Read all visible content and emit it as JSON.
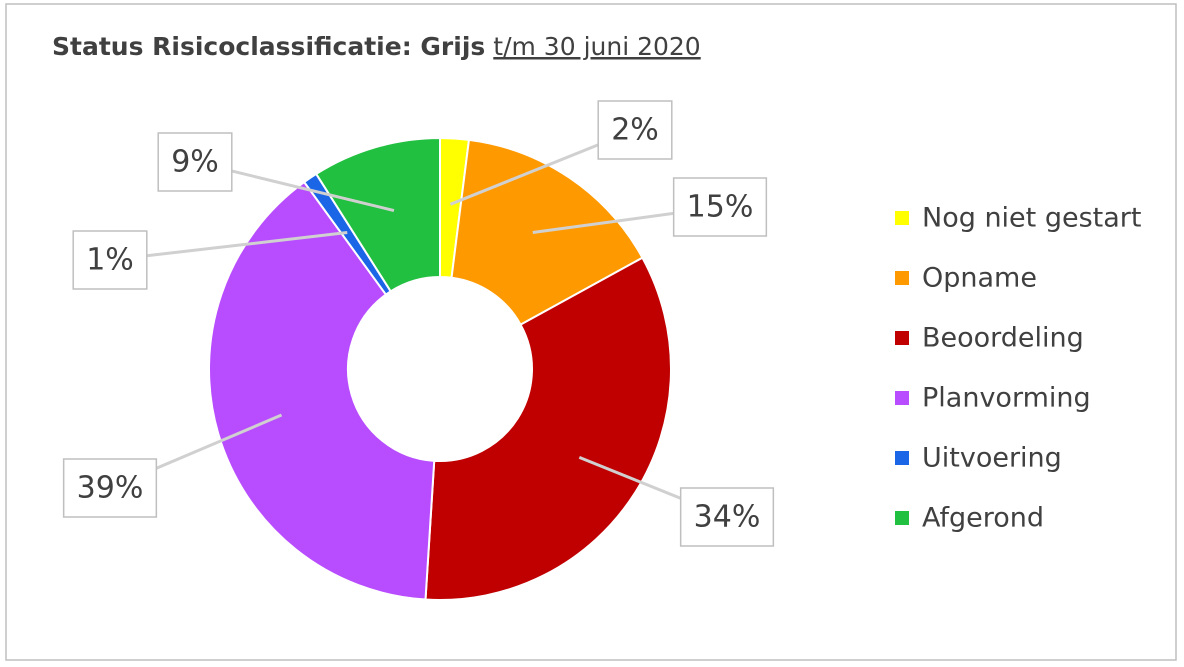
{
  "chart_data": {
    "type": "donut",
    "title": "Status Risicoclassificatie: Grijs",
    "subtitle": "t/m 30 juni 2020",
    "categories": [
      "Nog niet gestart",
      "Opname",
      "Beoordeling",
      "Planvorming",
      "Uitvoering",
      "Afgerond"
    ],
    "values": [
      2,
      15,
      34,
      39,
      1,
      9
    ],
    "value_labels": [
      "2%",
      "15%",
      "34%",
      "39%",
      "1%",
      "9%"
    ],
    "colors": [
      "#ffff00",
      "#ff9900",
      "#c00000",
      "#b84dff",
      "#1a66e6",
      "#22c040"
    ],
    "legend": "right"
  }
}
